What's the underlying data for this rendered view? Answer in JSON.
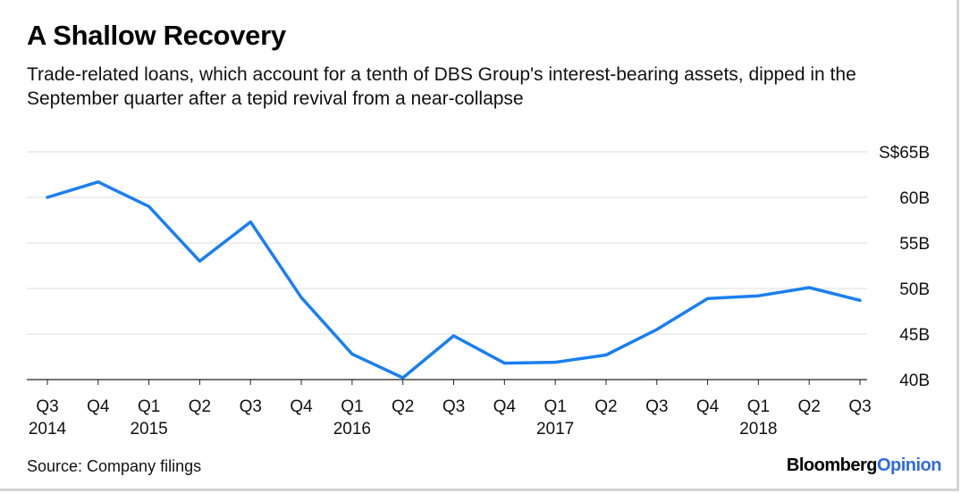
{
  "title": "A Shallow Recovery",
  "subtitle": "Trade-related loans, which account for a tenth of DBS Group's interest-bearing assets, dipped in the September quarter after a tepid revival from a near-collapse",
  "source": "Source: Company filings",
  "brand": {
    "part1": "Bloomberg",
    "part2": "Opinion"
  },
  "colors": {
    "line": "#1a7ff0",
    "grid": "#dddddd",
    "brand_accent": "#2f6be0"
  },
  "chart_data": {
    "type": "line",
    "title": "A Shallow Recovery",
    "xlabel": "",
    "ylabel": "",
    "ylim": [
      40,
      65
    ],
    "yticks": [
      40,
      45,
      50,
      55,
      60,
      65
    ],
    "ytick_labels": [
      "40B",
      "45B",
      "50B",
      "55B",
      "60B",
      "S$65B"
    ],
    "y_axis_side": "right",
    "grid": true,
    "categories": [
      "Q3 2014",
      "Q4 2014",
      "Q1 2015",
      "Q2 2015",
      "Q3 2015",
      "Q4 2015",
      "Q1 2016",
      "Q2 2016",
      "Q3 2016",
      "Q4 2016",
      "Q1 2017",
      "Q2 2017",
      "Q3 2017",
      "Q4 2017",
      "Q1 2018",
      "Q2 2018",
      "Q3 2018"
    ],
    "x_tick_quarters": [
      "Q3",
      "Q4",
      "Q1",
      "Q2",
      "Q3",
      "Q4",
      "Q1",
      "Q2",
      "Q3",
      "Q4",
      "Q1",
      "Q2",
      "Q3",
      "Q4",
      "Q1",
      "Q2",
      "Q3"
    ],
    "x_tick_years": [
      "2014",
      "",
      "2015",
      "",
      "",
      "",
      "2016",
      "",
      "",
      "",
      "2017",
      "",
      "",
      "",
      "2018",
      "",
      ""
    ],
    "series": [
      {
        "values": [
          60.0,
          61.7,
          59.0,
          53.0,
          57.3,
          49.0,
          42.8,
          40.2,
          44.8,
          41.8,
          41.9,
          42.7,
          45.5,
          48.9,
          49.2,
          50.1,
          48.7
        ]
      }
    ]
  }
}
